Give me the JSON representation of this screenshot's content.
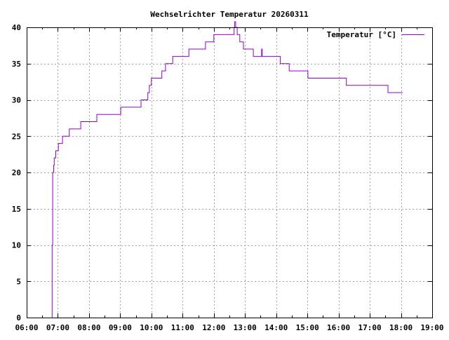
{
  "chart_data": {
    "type": "line",
    "title": "Wechselrichter Temperatur 20260311",
    "xlabel": "",
    "ylabel": "",
    "xlim": [
      "06:00",
      "19:00"
    ],
    "ylim": [
      0,
      40
    ],
    "x_ticks": [
      "06:00",
      "07:00",
      "08:00",
      "09:00",
      "10:00",
      "11:00",
      "12:00",
      "13:00",
      "14:00",
      "15:00",
      "16:00",
      "17:00",
      "18:00",
      "19:00"
    ],
    "y_ticks": [
      0,
      5,
      10,
      15,
      20,
      25,
      30,
      35,
      40
    ],
    "grid": true,
    "legend_position": "top-right",
    "line_style": "steps",
    "series": [
      {
        "name": "Temperatur [°C]",
        "color": "#9400d3",
        "points": [
          [
            "06:49",
            0
          ],
          [
            "06:49",
            10
          ],
          [
            "06:50",
            20
          ],
          [
            "06:52",
            21
          ],
          [
            "06:53",
            22
          ],
          [
            "06:56",
            23
          ],
          [
            "07:01",
            24
          ],
          [
            "07:09",
            25
          ],
          [
            "07:22",
            26
          ],
          [
            "07:44",
            27
          ],
          [
            "08:15",
            28
          ],
          [
            "09:01",
            29
          ],
          [
            "09:40",
            30
          ],
          [
            "09:53",
            31
          ],
          [
            "09:56",
            32
          ],
          [
            "10:00",
            33
          ],
          [
            "10:20",
            34
          ],
          [
            "10:27",
            35
          ],
          [
            "10:41",
            36
          ],
          [
            "11:12",
            37
          ],
          [
            "11:44",
            38
          ],
          [
            "12:00",
            39
          ],
          [
            "12:39",
            40
          ],
          [
            "12:40",
            41
          ],
          [
            "12:42",
            40
          ],
          [
            "12:45",
            39
          ],
          [
            "12:50",
            38
          ],
          [
            "12:57",
            37
          ],
          [
            "13:16",
            36
          ],
          [
            "13:32",
            37
          ],
          [
            "13:33",
            36
          ],
          [
            "14:08",
            35
          ],
          [
            "14:25",
            34
          ],
          [
            "15:01",
            33
          ],
          [
            "16:15",
            32
          ],
          [
            "17:35",
            31
          ],
          [
            "18:03",
            31
          ]
        ]
      }
    ]
  }
}
